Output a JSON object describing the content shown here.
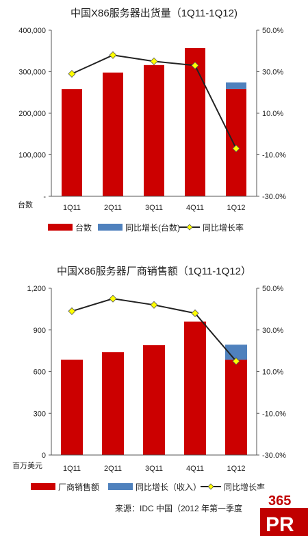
{
  "chart_data": [
    {
      "type": "bar",
      "title": "中国X86服务器出货量（1Q11-1Q12)",
      "ylabel": "台数",
      "categories": [
        "1Q11",
        "2Q11",
        "3Q11",
        "4Q11",
        "1Q12"
      ],
      "ylim": [
        0,
        400000
      ],
      "y_ticks": [
        "400,000",
        "300,000",
        "200,000",
        "100,000",
        "-"
      ],
      "y2lim": [
        -30,
        50
      ],
      "y2_ticks": [
        "50.0%",
        "30.0%",
        "10.0%",
        "-10.0%",
        "-30.0%"
      ],
      "grid": false,
      "legend_position": "bottom",
      "series": [
        {
          "name": "台数",
          "kind": "bar",
          "color": "#cc0000",
          "values": [
            258000,
            298000,
            316000,
            357000,
            258000
          ]
        },
        {
          "name": "同比增长(台数)",
          "kind": "bar-stack",
          "color": "#4f81bd",
          "values": [
            0,
            0,
            0,
            0,
            16000
          ]
        },
        {
          "name": "同比增长率",
          "kind": "line",
          "axis": "right",
          "color": "#222222",
          "marker_color": "#ffff00",
          "values": [
            29,
            38,
            35,
            33,
            -7
          ]
        }
      ]
    },
    {
      "type": "bar",
      "title": "中国X86服务器厂商销售额（1Q11-1Q12）",
      "ylabel": "百万美元",
      "categories": [
        "1Q11",
        "2Q11",
        "3Q11",
        "4Q11",
        "1Q12"
      ],
      "ylim": [
        0,
        1200
      ],
      "y_ticks": [
        "1,200",
        "900",
        "600",
        "300",
        "0"
      ],
      "y2lim": [
        -30,
        50
      ],
      "y2_ticks": [
        "50.0%",
        "30.0%",
        "10.0%",
        "-10.0%",
        "-30.0%"
      ],
      "grid": false,
      "legend_position": "bottom",
      "series": [
        {
          "name": "厂商销售额",
          "kind": "bar",
          "color": "#cc0000",
          "values": [
            686,
            740,
            790,
            960,
            686
          ]
        },
        {
          "name": "同比增长（收入）",
          "kind": "bar-stack",
          "color": "#4f81bd",
          "values": [
            0,
            0,
            0,
            0,
            108
          ]
        },
        {
          "name": "同比增长率",
          "kind": "line",
          "axis": "right",
          "color": "#222222",
          "marker_color": "#ffff00",
          "values": [
            39,
            45,
            42,
            38,
            15
          ]
        }
      ]
    }
  ],
  "source_note": "来源：IDC 中国（2012 年第一季度",
  "logo": {
    "number": "365",
    "letters": "PR"
  }
}
